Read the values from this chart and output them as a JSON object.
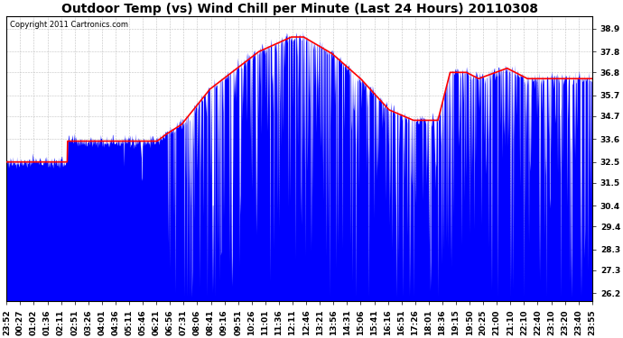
{
  "title": "Outdoor Temp (vs) Wind Chill per Minute (Last 24 Hours) 20110308",
  "copyright": "Copyright 2011 Cartronics.com",
  "yticks": [
    26.2,
    27.3,
    28.3,
    29.4,
    30.4,
    31.5,
    32.5,
    33.6,
    34.7,
    35.7,
    36.8,
    37.8,
    38.9
  ],
  "ymin": 25.8,
  "ymax": 39.5,
  "bg_color": "#ffffff",
  "grid_color": "#bbbbbb",
  "blue_color": "#0000ff",
  "red_color": "#ff0000",
  "title_fontsize": 10,
  "copyright_fontsize": 6,
  "tick_fontsize": 6.5,
  "x_tick_labels": [
    "23:52",
    "00:27",
    "01:02",
    "01:36",
    "02:11",
    "02:51",
    "03:26",
    "04:01",
    "04:36",
    "05:11",
    "05:46",
    "06:21",
    "06:56",
    "07:31",
    "08:06",
    "08:41",
    "09:16",
    "09:51",
    "10:26",
    "11:01",
    "11:36",
    "12:11",
    "12:46",
    "13:21",
    "13:56",
    "14:31",
    "15:06",
    "15:41",
    "16:16",
    "16:51",
    "17:26",
    "18:01",
    "18:36",
    "19:15",
    "19:50",
    "20:25",
    "21:00",
    "21:10",
    "22:10",
    "22:40",
    "23:10",
    "23:20",
    "23:40",
    "23:55"
  ]
}
